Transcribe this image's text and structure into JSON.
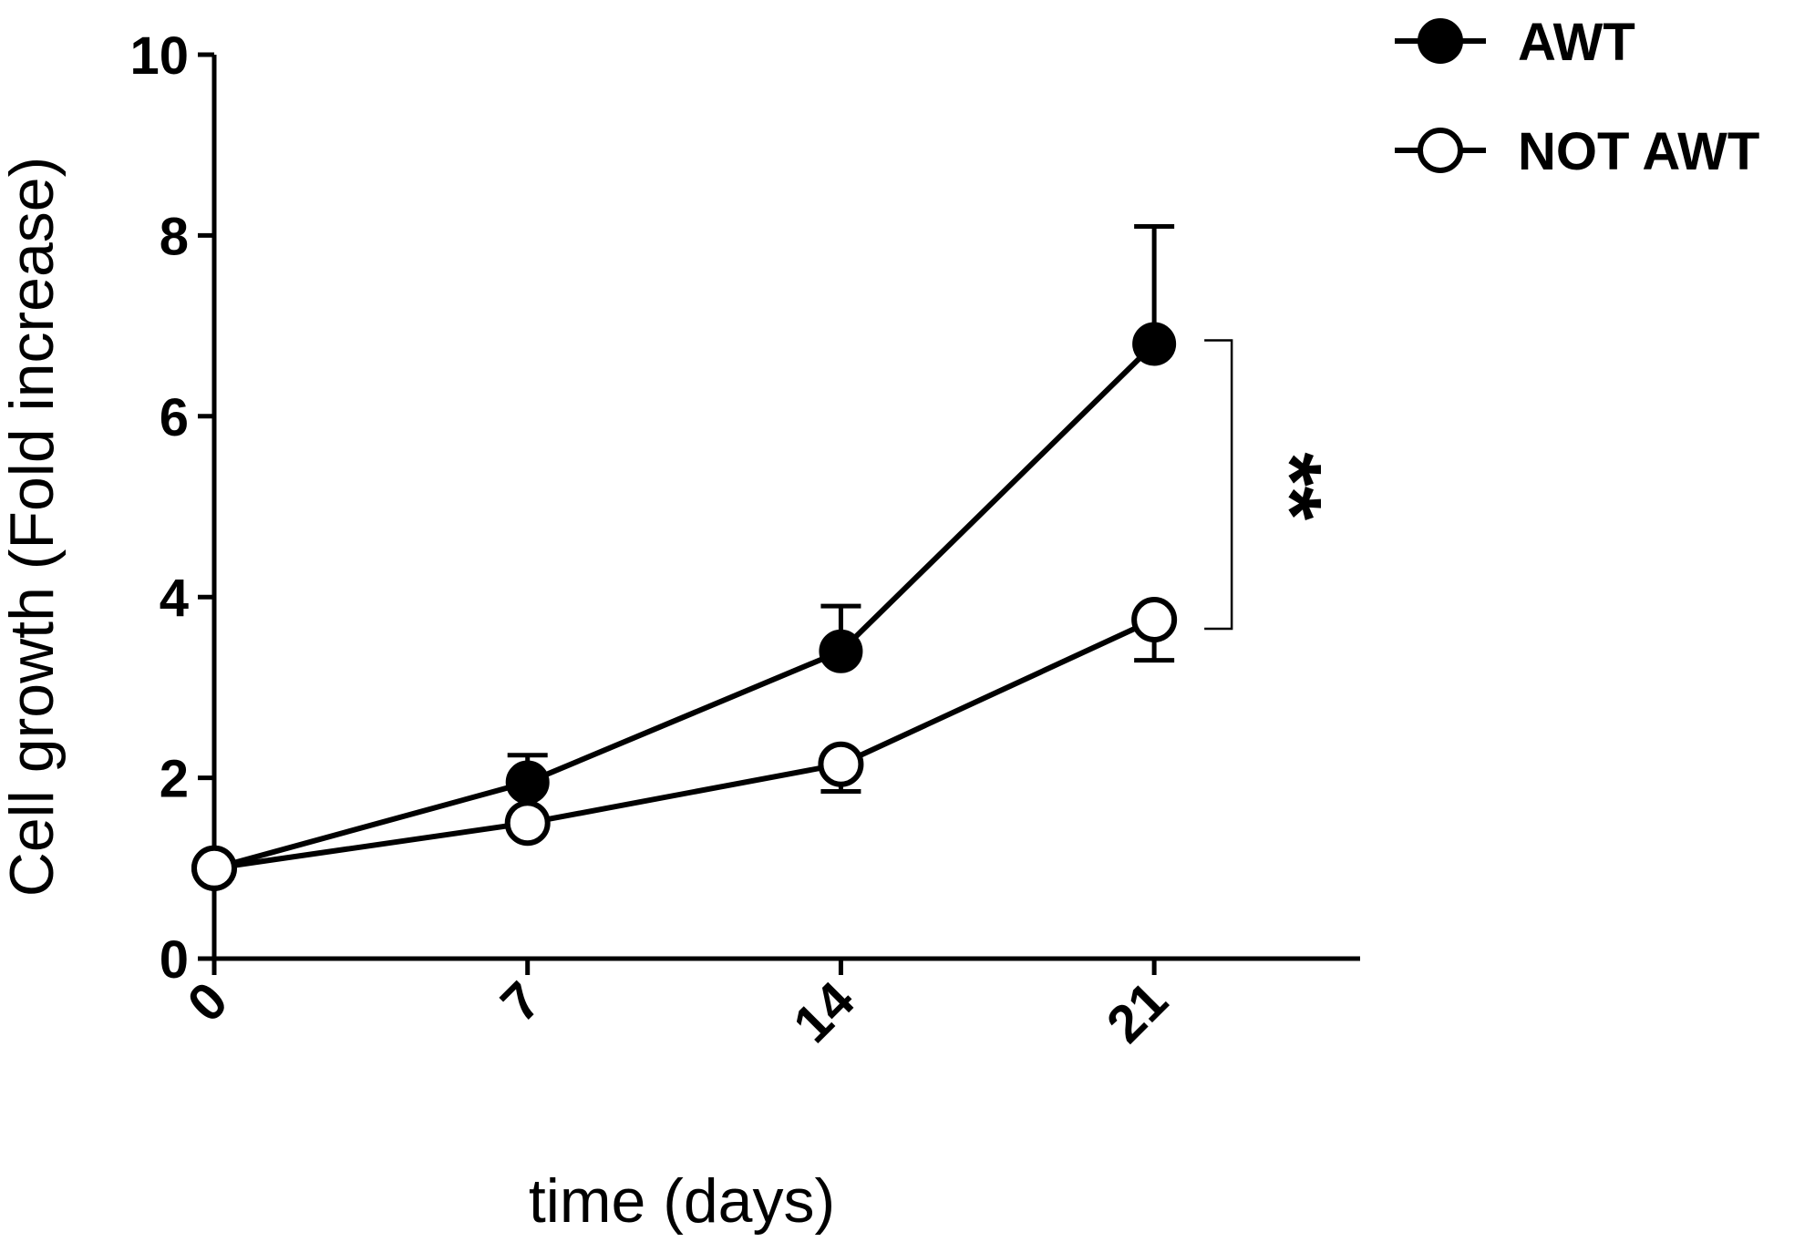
{
  "chart_data": {
    "type": "line",
    "title": "",
    "xlabel": "time (days)",
    "ylabel": "Cell growth (Fold increase)",
    "x": [
      0,
      7,
      14,
      21
    ],
    "x_tick_labels": [
      "0",
      "7",
      "14",
      "21"
    ],
    "xlim": [
      0,
      25.6
    ],
    "ylim": [
      0,
      10
    ],
    "y_ticks": [
      0,
      2,
      4,
      6,
      8,
      10
    ],
    "y_tick_labels": [
      "0",
      "2",
      "4",
      "6",
      "8",
      "10"
    ],
    "grid": false,
    "legend_position": "top-right",
    "series": [
      {
        "name": "AWT",
        "marker": "filled-circle",
        "color": "#000000",
        "values": [
          1.0,
          1.95,
          3.4,
          6.8
        ],
        "error_upper": [
          0,
          0.3,
          0.5,
          1.3
        ]
      },
      {
        "name": "NOT AWT",
        "marker": "open-circle",
        "color": "#000000",
        "values": [
          1.0,
          1.5,
          2.15,
          3.75
        ],
        "error_lower": [
          0,
          0,
          0.3,
          0.45
        ]
      }
    ],
    "annotations": [
      {
        "text": "**",
        "x": 21,
        "y_from": 3.75,
        "y_to": 6.8
      }
    ]
  }
}
